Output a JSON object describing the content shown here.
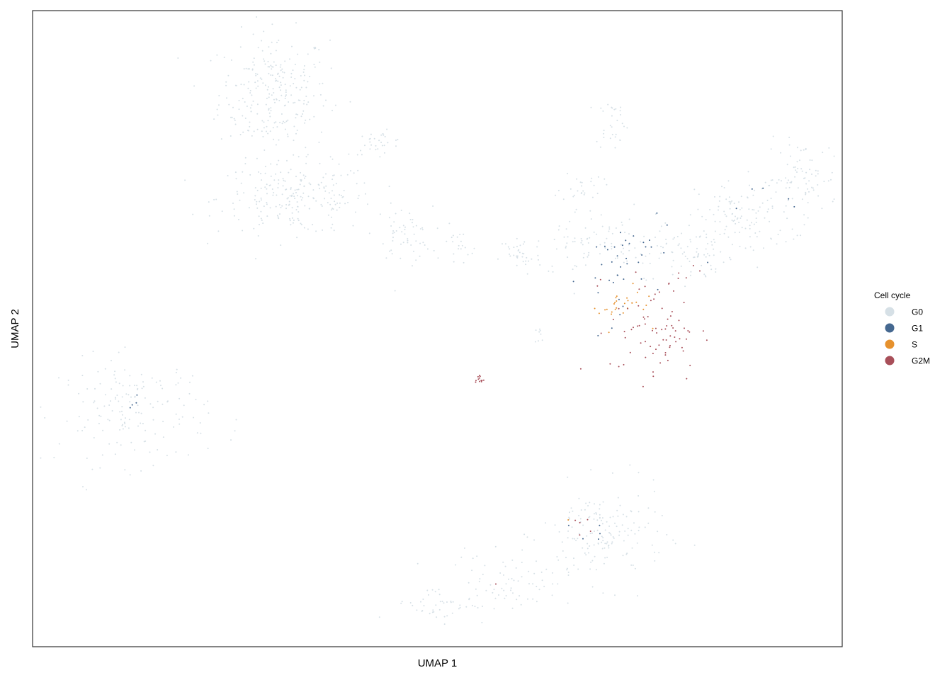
{
  "chart_data": {
    "type": "scatter",
    "xlabel": "UMAP 1",
    "ylabel": "UMAP 2",
    "xlim": [
      0,
      100
    ],
    "ylim": [
      0,
      100
    ],
    "grid": false,
    "axis_ticks": false,
    "legend": {
      "title": "Cell cycle",
      "placement": "right",
      "entries": [
        {
          "label": "G0",
          "color": "#d6e0e6"
        },
        {
          "label": "G1",
          "color": "#456890"
        },
        {
          "label": "S",
          "color": "#e6912d"
        },
        {
          "label": "G2M",
          "color": "#a84f59"
        }
      ]
    },
    "series": [
      {
        "name": "G0",
        "color": "#d6e0e6",
        "clusters": [
          {
            "cx": 29.8,
            "cy": 87.0,
            "sx": 3.4,
            "sy": 4.8,
            "n": 260
          },
          {
            "cx": 32.5,
            "cy": 70.5,
            "sx": 4.8,
            "sy": 2.8,
            "n": 230
          },
          {
            "cx": 42.8,
            "cy": 79.2,
            "sx": 1.6,
            "sy": 0.9,
            "n": 30
          },
          {
            "cx": 45.8,
            "cy": 64.8,
            "sx": 1.8,
            "sy": 2.2,
            "n": 55
          },
          {
            "cx": 52.5,
            "cy": 62.2,
            "sx": 1.4,
            "sy": 1.6,
            "n": 20
          },
          {
            "cx": 60.2,
            "cy": 61.5,
            "sx": 1.3,
            "sy": 1.6,
            "n": 35
          },
          {
            "cx": 62.8,
            "cy": 48.8,
            "sx": 0.4,
            "sy": 0.9,
            "n": 8
          },
          {
            "cx": 67.4,
            "cy": 63.5,
            "sx": 2.6,
            "sy": 2.8,
            "n": 50
          },
          {
            "cx": 67.8,
            "cy": 72.5,
            "sx": 1.3,
            "sy": 1.3,
            "n": 25
          },
          {
            "cx": 71.6,
            "cy": 82.5,
            "sx": 1.0,
            "sy": 2.1,
            "n": 30
          },
          {
            "cx": 72.5,
            "cy": 63.0,
            "sx": 2.8,
            "sy": 2.8,
            "n": 45
          },
          {
            "cx": 81.5,
            "cy": 62.0,
            "sx": 2.0,
            "sy": 2.4,
            "n": 70
          },
          {
            "cx": 88.0,
            "cy": 67.5,
            "sx": 3.0,
            "sy": 3.0,
            "n": 110
          },
          {
            "cx": 95.0,
            "cy": 73.5,
            "sx": 2.2,
            "sy": 3.0,
            "n": 80
          },
          {
            "cx": 12.5,
            "cy": 37.0,
            "sx": 4.6,
            "sy": 4.2,
            "n": 160
          },
          {
            "cx": 70.5,
            "cy": 17.5,
            "sx": 3.8,
            "sy": 3.8,
            "n": 160
          },
          {
            "cx": 59.0,
            "cy": 10.5,
            "sx": 3.8,
            "sy": 2.0,
            "n": 70
          },
          {
            "cx": 50.5,
            "cy": 6.8,
            "sx": 3.0,
            "sy": 1.4,
            "n": 45
          }
        ]
      },
      {
        "name": "G1",
        "color": "#456890",
        "clusters": [
          {
            "cx": 71.5,
            "cy": 57.5,
            "sx": 2.0,
            "sy": 5.0,
            "n": 30
          },
          {
            "cx": 75.0,
            "cy": 63.0,
            "sx": 3.0,
            "sy": 2.5,
            "n": 10
          },
          {
            "cx": 12.5,
            "cy": 38.5,
            "sx": 0.3,
            "sy": 0.5,
            "n": 4
          },
          {
            "cx": 68.0,
            "cy": 17.8,
            "sx": 1.5,
            "sy": 1.0,
            "n": 5
          },
          {
            "cx": 88.5,
            "cy": 68.5,
            "sx": 3.0,
            "sy": 2.0,
            "n": 5
          }
        ]
      },
      {
        "name": "S",
        "color": "#e6912d",
        "clusters": [
          {
            "cx": 72.3,
            "cy": 53.5,
            "sx": 1.2,
            "sy": 1.1,
            "n": 22
          },
          {
            "cx": 74.0,
            "cy": 51.0,
            "sx": 1.5,
            "sy": 3.0,
            "n": 6
          },
          {
            "cx": 66.7,
            "cy": 19.8,
            "sx": 0.3,
            "sy": 0.3,
            "n": 1
          }
        ]
      },
      {
        "name": "G2M",
        "color": "#a84f59",
        "clusters": [
          {
            "cx": 77.0,
            "cy": 50.0,
            "sx": 2.8,
            "sy": 4.2,
            "n": 80
          },
          {
            "cx": 55.2,
            "cy": 42.0,
            "sx": 0.3,
            "sy": 0.4,
            "n": 12
          },
          {
            "cx": 68.0,
            "cy": 19.5,
            "sx": 1.2,
            "sy": 0.8,
            "n": 5
          },
          {
            "cx": 57.3,
            "cy": 9.8,
            "sx": 0.2,
            "sy": 0.2,
            "n": 1
          },
          {
            "cx": 81.0,
            "cy": 59.0,
            "sx": 0.8,
            "sy": 0.8,
            "n": 4
          }
        ]
      }
    ]
  }
}
